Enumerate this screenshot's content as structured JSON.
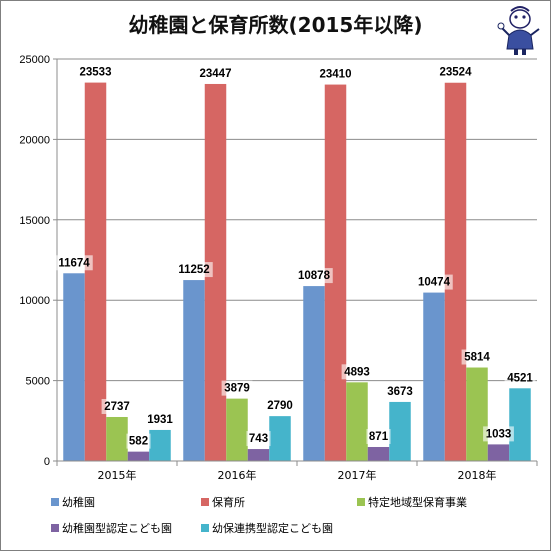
{
  "title": "幼稚園と保育所数(2015年以降)",
  "chart_data": {
    "type": "bar",
    "title": "幼稚園と保育所数(2015年以降)",
    "categories": [
      "2015年",
      "2016年",
      "2017年",
      "2018年"
    ],
    "ylim": [
      0,
      25000
    ],
    "yticks": [
      "0",
      "5000",
      "10000",
      "15000",
      "20000",
      "25000"
    ],
    "grid": true,
    "legend_position": "bottom",
    "series": [
      {
        "name": "幼稚園",
        "color": "#6A95CD",
        "values": [
          11674,
          11252,
          10878,
          10474
        ]
      },
      {
        "name": "保育所",
        "color": "#D66663",
        "values": [
          23533,
          23447,
          23410,
          23524
        ]
      },
      {
        "name": "特定地域型保育事業",
        "color": "#9BC452",
        "values": [
          2737,
          3879,
          4893,
          5814
        ]
      },
      {
        "name": "幼稚園型認定こども園",
        "color": "#7E63A2",
        "values": [
          582,
          743,
          871,
          1033
        ]
      },
      {
        "name": "幼保連携型認定こども園",
        "color": "#45B4CB",
        "values": [
          1931,
          2790,
          3673,
          4521
        ]
      }
    ]
  }
}
